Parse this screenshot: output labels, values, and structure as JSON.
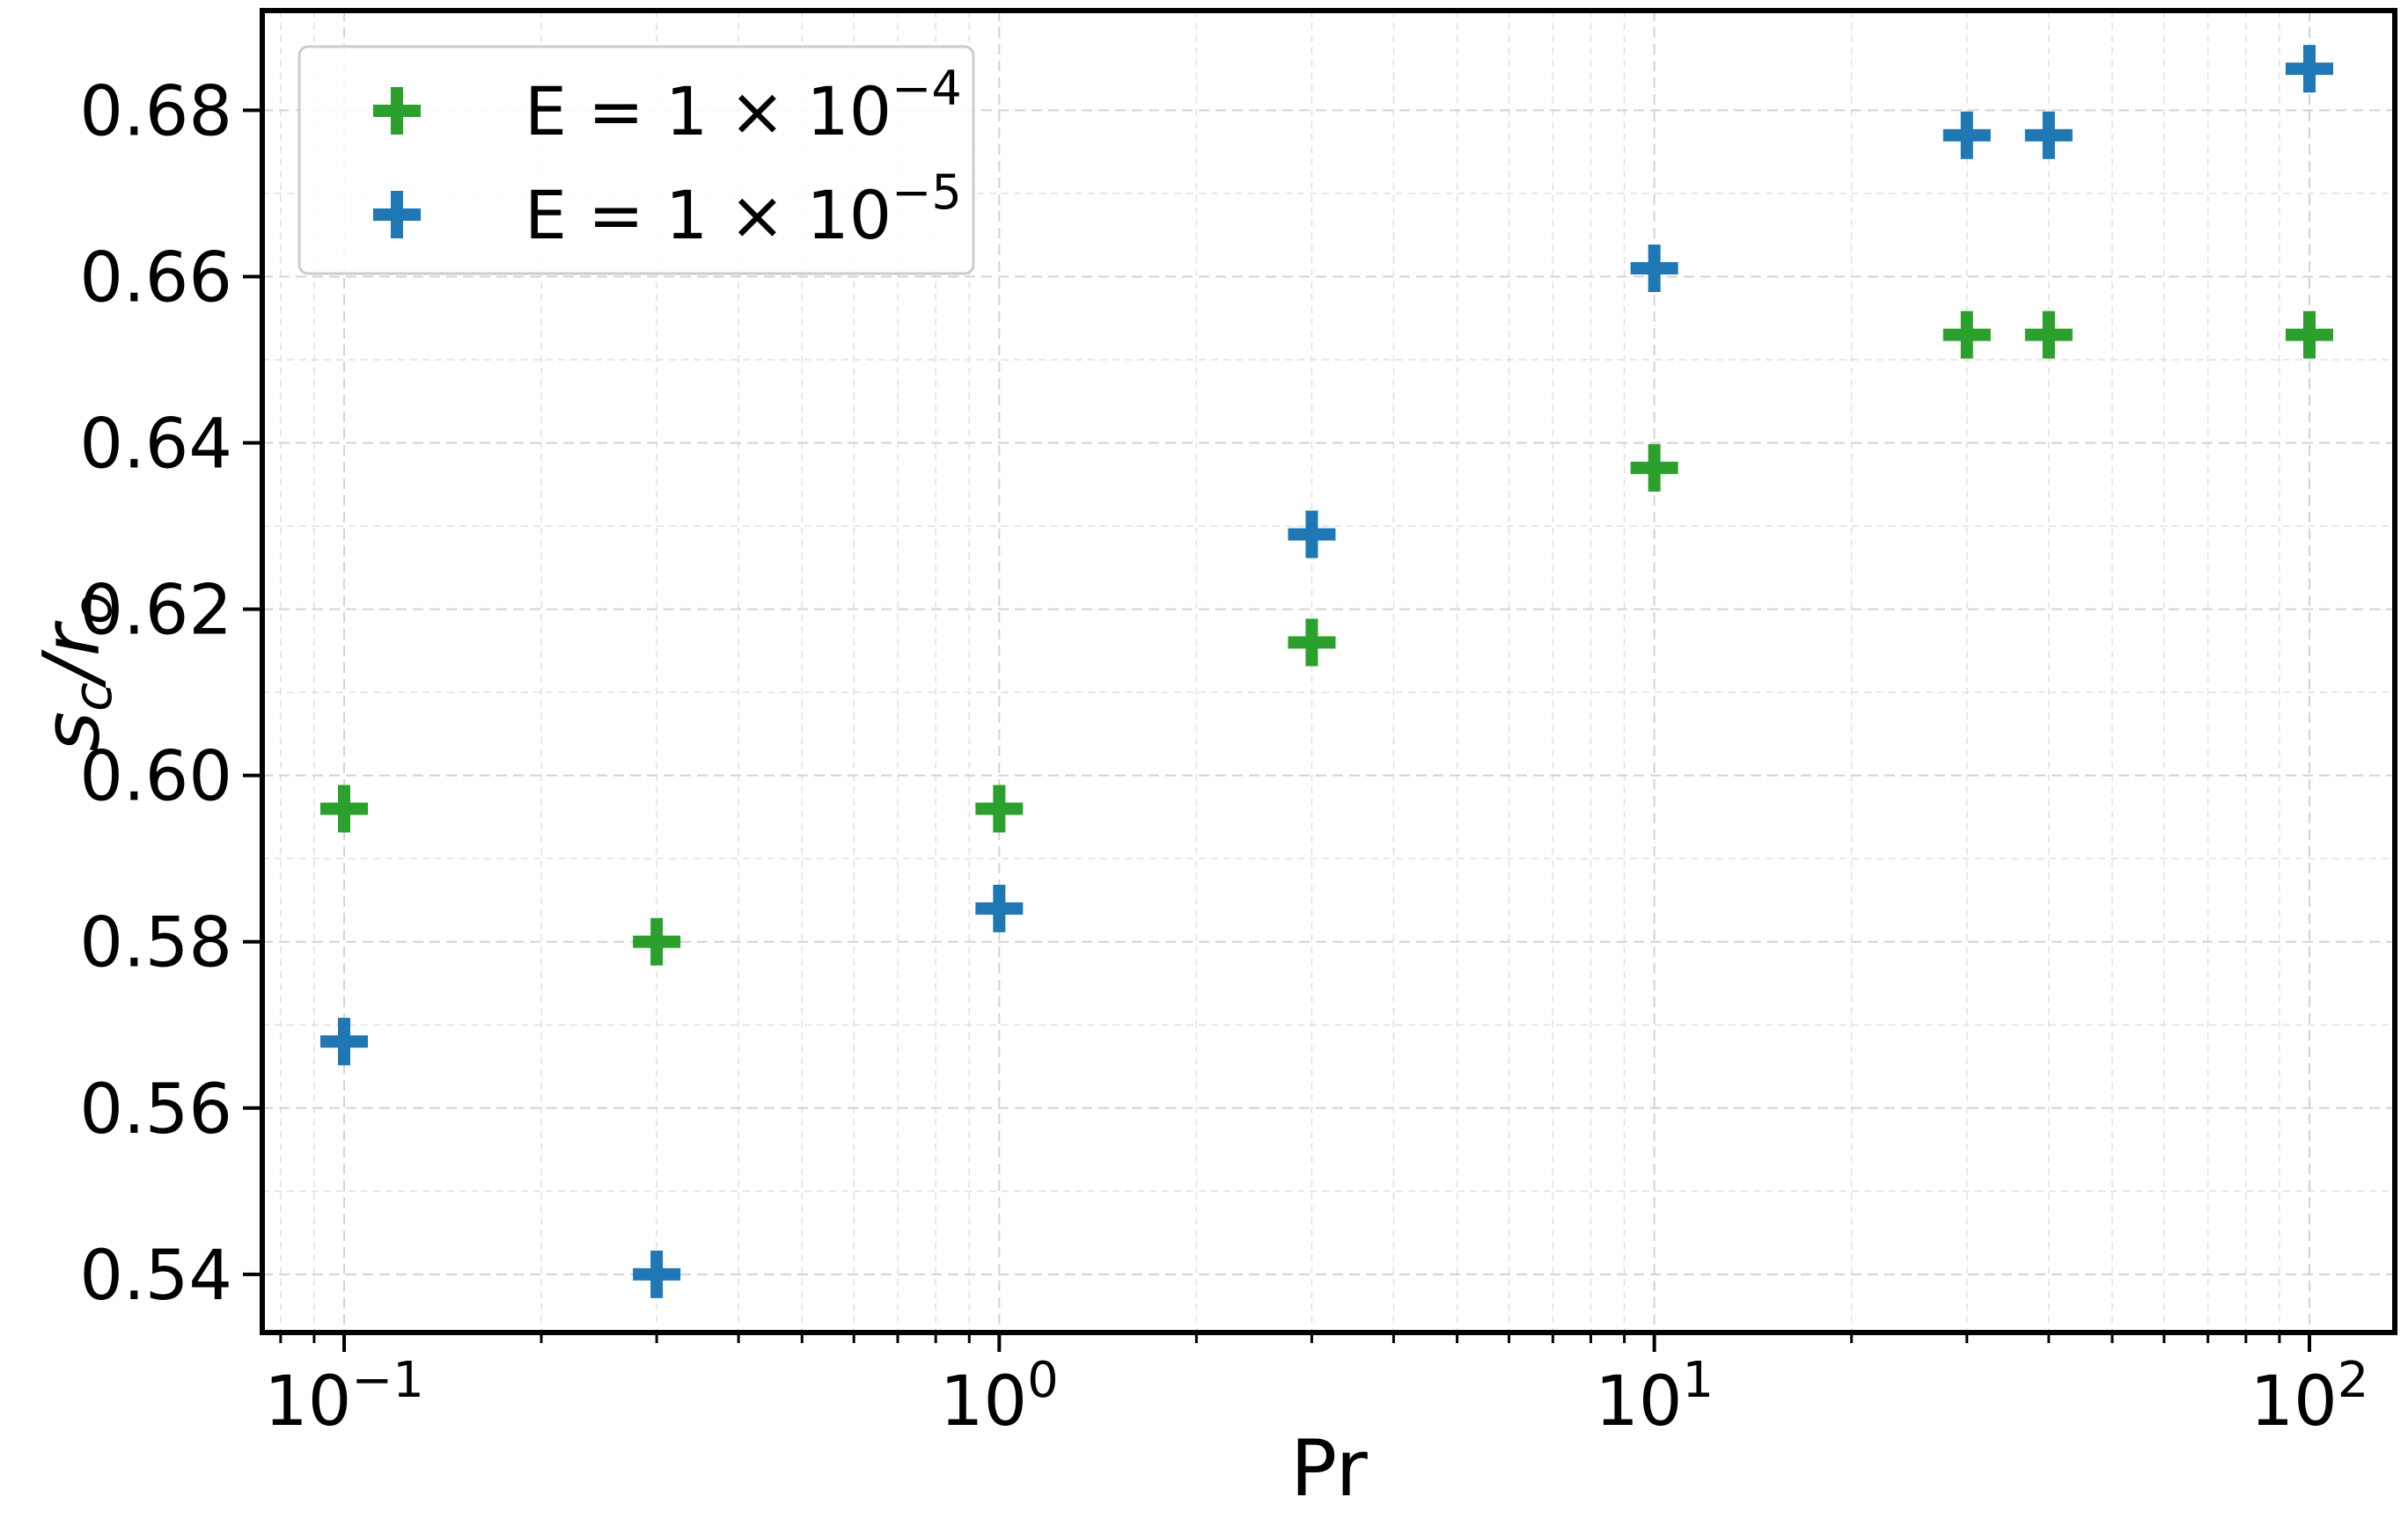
{
  "chart_data": {
    "type": "scatter",
    "title": "",
    "xlabel": "Pr",
    "ylabel": "s_c/r_o",
    "xscale": "log",
    "xlim": [
      0.075,
      135
    ],
    "ylim": [
      0.533,
      0.692
    ],
    "grid": true,
    "legend_position": "top-left",
    "marker": "plus",
    "x_ticks": [
      {
        "value": 0.1,
        "base": "10",
        "exp": "−1"
      },
      {
        "value": 1,
        "base": "10",
        "exp": "0"
      },
      {
        "value": 10,
        "base": "10",
        "exp": "1"
      },
      {
        "value": 100,
        "base": "10",
        "exp": "2"
      }
    ],
    "y_ticks": [
      {
        "value": 0.54,
        "label": "0.54"
      },
      {
        "value": 0.56,
        "label": "0.56"
      },
      {
        "value": 0.58,
        "label": "0.58"
      },
      {
        "value": 0.6,
        "label": "0.60"
      },
      {
        "value": 0.62,
        "label": "0.62"
      },
      {
        "value": 0.64,
        "label": "0.64"
      },
      {
        "value": 0.66,
        "label": "0.66"
      },
      {
        "value": 0.68,
        "label": "0.68"
      }
    ],
    "series": [
      {
        "name": "E = 1 × 10^−4",
        "label_main": "E = 1 × 10",
        "label_exp": "−4",
        "color": "#2ca02c",
        "x": [
          0.1,
          0.3,
          1,
          3,
          10,
          30,
          40,
          100
        ],
        "y": [
          0.596,
          0.58,
          0.596,
          0.616,
          0.637,
          0.653,
          0.653,
          0.653
        ]
      },
      {
        "name": "E = 1 × 10^−5",
        "label_main": "E = 1 × 10",
        "label_exp": "−5",
        "color": "#1f77b4",
        "x": [
          0.1,
          0.3,
          1,
          3,
          10,
          30,
          40,
          100
        ],
        "y": [
          0.568,
          0.54,
          0.584,
          0.629,
          0.661,
          0.677,
          0.677,
          0.685
        ]
      }
    ]
  }
}
